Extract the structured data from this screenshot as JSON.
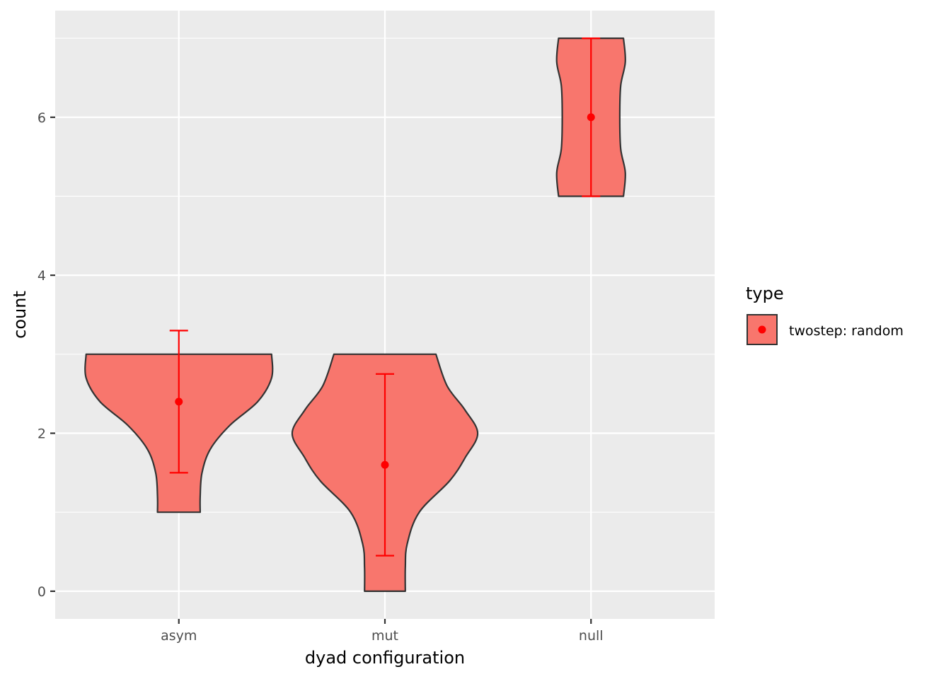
{
  "chart_data": {
    "type": "violin",
    "title": "",
    "xlabel": "dyad configuration",
    "ylabel": "count",
    "categories": [
      "asym",
      "mut",
      "null"
    ],
    "y_ticks": [
      0,
      2,
      4,
      6
    ],
    "ylim": [
      -0.35,
      7.35
    ],
    "grid": true,
    "legend": {
      "title": "type",
      "position": "right",
      "entries": [
        {
          "label": "twostep: random",
          "fill": "#F8766D",
          "point": "#FF0000"
        }
      ]
    },
    "series": [
      {
        "name": "twostep: random",
        "fill": "#F8766D",
        "outline": "#333333",
        "summary_color": "#FF0000",
        "violins": [
          {
            "category": "asym",
            "density_profile": [
              [
                1,
                0.23
              ],
              [
                1.2,
                0.23
              ],
              [
                1.5,
                0.25
              ],
              [
                1.8,
                0.34
              ],
              [
                2.1,
                0.55
              ],
              [
                2.4,
                0.85
              ],
              [
                2.7,
                1.0
              ],
              [
                3,
                1.0
              ]
            ],
            "mean": 2.4,
            "ci": [
              1.5,
              3.3
            ]
          },
          {
            "category": "mut",
            "density_profile": [
              [
                0,
                0.22
              ],
              [
                0.3,
                0.22
              ],
              [
                0.6,
                0.24
              ],
              [
                1.0,
                0.37
              ],
              [
                1.4,
                0.7
              ],
              [
                1.7,
                0.87
              ],
              [
                2.0,
                1.0
              ],
              [
                2.3,
                0.86
              ],
              [
                2.6,
                0.67
              ],
              [
                3,
                0.55
              ]
            ],
            "mean": 1.6,
            "ci": [
              0.45,
              2.75
            ]
          },
          {
            "category": "null",
            "density_profile": [
              [
                5,
                0.35
              ],
              [
                5.3,
                0.37
              ],
              [
                5.6,
                0.32
              ],
              [
                6.0,
                0.31
              ],
              [
                6.4,
                0.32
              ],
              [
                6.7,
                0.37
              ],
              [
                7,
                0.35
              ]
            ],
            "mean": 6.0,
            "ci": [
              5.0,
              7.0
            ]
          }
        ]
      }
    ]
  }
}
